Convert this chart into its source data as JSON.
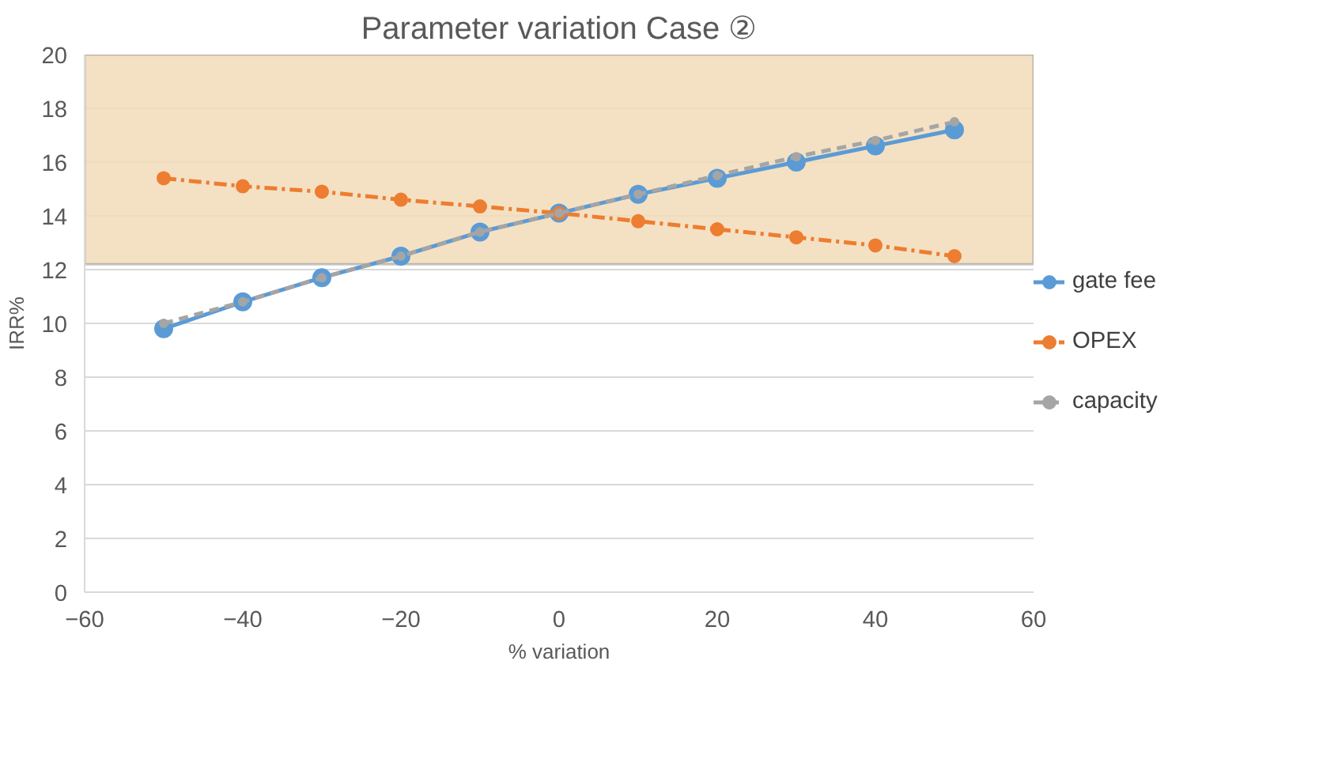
{
  "chart_data": {
    "type": "line",
    "title": "Parameter variation Case ②",
    "xlabel": "% variation",
    "ylabel": "IRR%",
    "x": [
      -50,
      -40,
      -30,
      -20,
      -10,
      0,
      10,
      20,
      30,
      40,
      50
    ],
    "series": [
      {
        "name": "gate fee",
        "color": "#5b9bd5",
        "line_style": "solid",
        "values": [
          9.8,
          10.8,
          11.7,
          12.5,
          13.4,
          14.1,
          14.8,
          15.4,
          16.0,
          16.6,
          17.2
        ]
      },
      {
        "name": "OPEX",
        "color": "#ed7d31",
        "line_style": "dashdot",
        "values": [
          15.4,
          15.1,
          14.9,
          14.6,
          14.35,
          14.1,
          13.8,
          13.5,
          13.2,
          12.9,
          12.5
        ]
      },
      {
        "name": "capacity",
        "color": "#a5a5a5",
        "line_style": "dashed",
        "values": [
          10.0,
          10.8,
          11.7,
          12.5,
          13.4,
          14.1,
          14.8,
          15.5,
          16.2,
          16.8,
          17.5
        ]
      }
    ],
    "xlim": [
      -60,
      60
    ],
    "xticks": [
      -60,
      -40,
      -20,
      0,
      20,
      40,
      60
    ],
    "ylim": [
      0,
      20
    ],
    "yticks": [
      0,
      2,
      4,
      6,
      8,
      10,
      12,
      14,
      16,
      18,
      20
    ],
    "bands": [
      {
        "axis": "y",
        "from": 12.2,
        "to": 20,
        "color": "#f2dcb8"
      }
    ],
    "grid": "y",
    "legend": "right",
    "marker": "circle"
  }
}
